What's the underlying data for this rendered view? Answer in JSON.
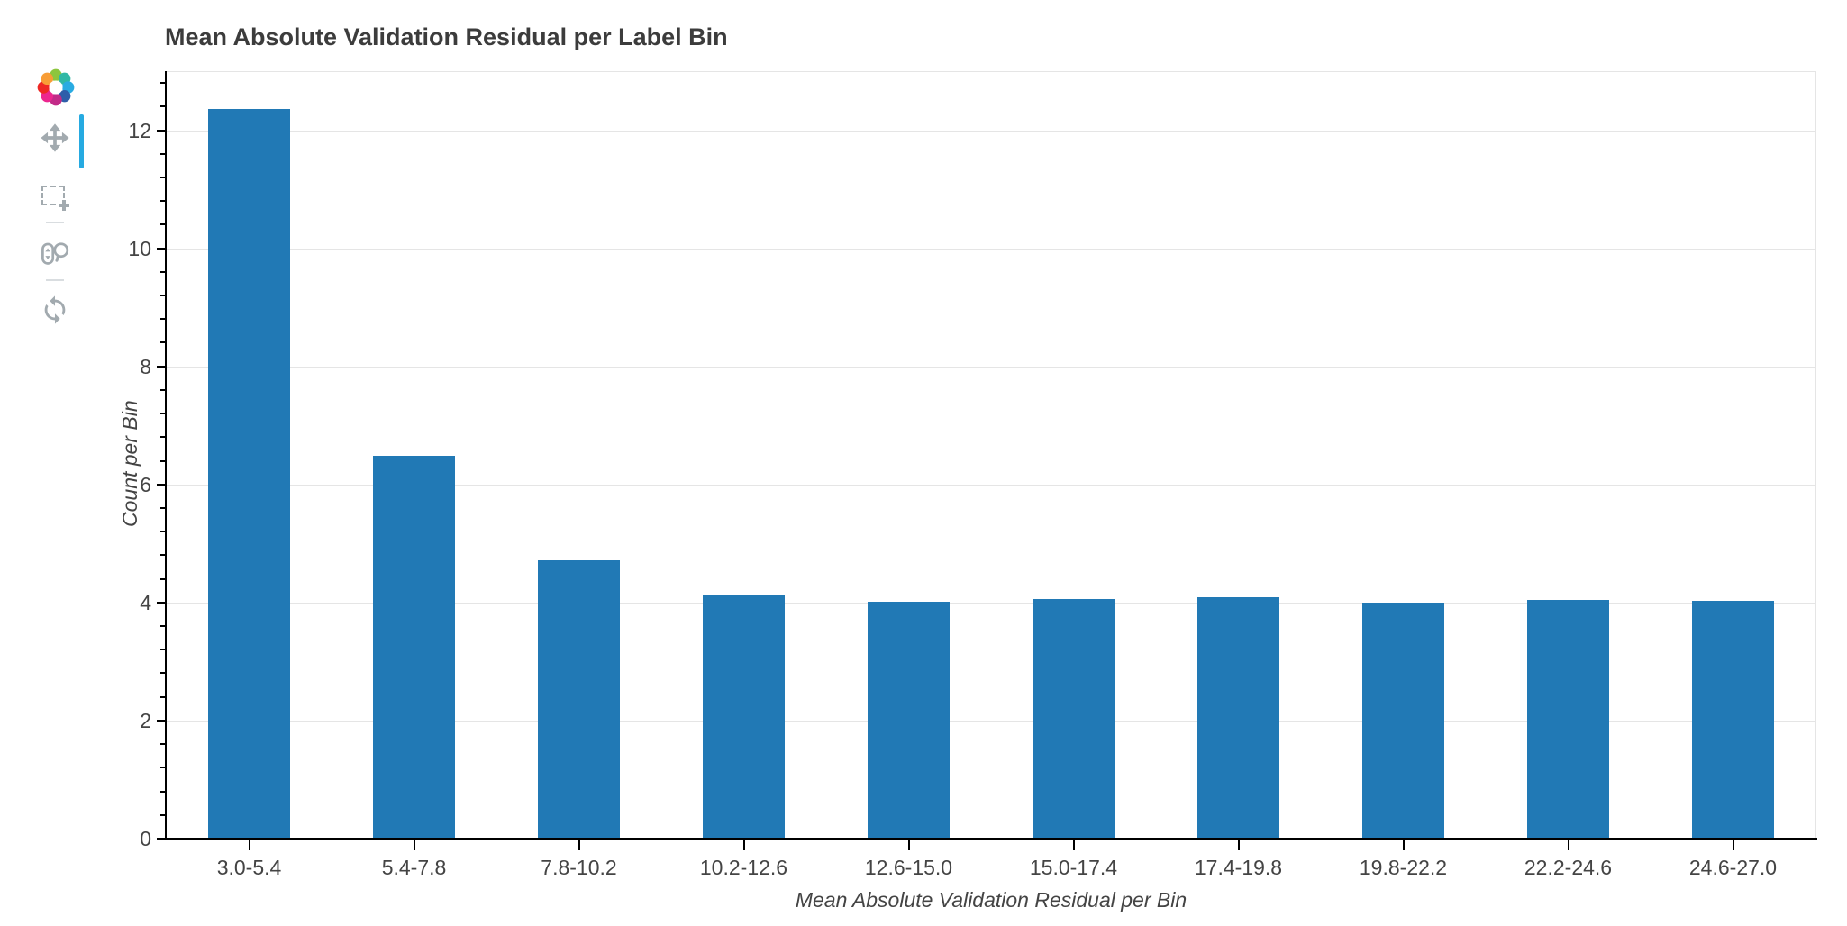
{
  "chart_data": {
    "type": "bar",
    "title": "Mean Absolute Validation Residual per Label Bin",
    "xlabel": "Mean Absolute Validation Residual per Bin",
    "ylabel": "Count per Bin",
    "categories": [
      "3.0-5.4",
      "5.4-7.8",
      "7.8-10.2",
      "10.2-12.6",
      "12.6-15.0",
      "15.0-17.4",
      "17.4-19.8",
      "19.8-22.2",
      "22.2-24.6",
      "24.6-27.0"
    ],
    "values": [
      12.37,
      6.5,
      4.73,
      4.15,
      4.03,
      4.08,
      4.1,
      4.01,
      4.06,
      4.04
    ],
    "ylim": [
      0,
      13
    ],
    "yticks": [
      0,
      2,
      4,
      6,
      8,
      10,
      12
    ],
    "minor_tick_step": 0.4,
    "bar_width_fraction": 0.5,
    "grid": "horizontal",
    "legend": "none"
  },
  "toolbar": {
    "logo_name": "bokeh-logo",
    "tools": [
      {
        "name": "pan",
        "active": true
      },
      {
        "name": "box-zoom",
        "active": false
      },
      {
        "name": "wheel-zoom",
        "active": false
      },
      {
        "name": "reset",
        "active": false
      }
    ],
    "active_tool": "pan"
  },
  "colors": {
    "bar": "#2179b5",
    "active_indicator": "#26aae1",
    "grid": "#e5e5e5",
    "axis": "#000000",
    "tick_label": "#444444",
    "title": "#3c3c3c",
    "axis_label": "#444444",
    "toolbar_icon": "#a2aaaf"
  }
}
